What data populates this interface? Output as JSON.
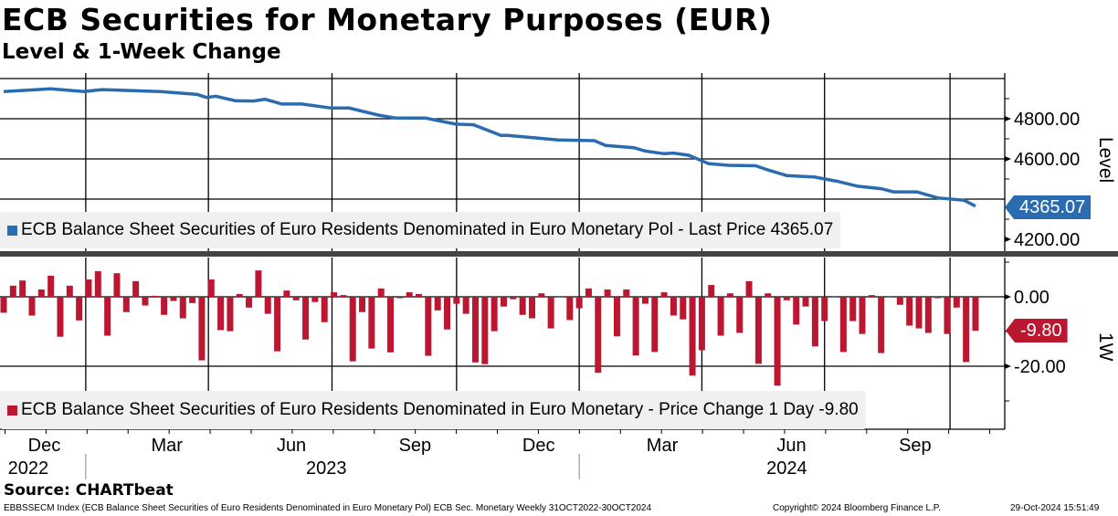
{
  "header": {
    "title": "ECB Securities for Monetary Purposes (EUR)",
    "subtitle": "Level & 1-Week Change"
  },
  "colors": {
    "level": "#2b6cb0",
    "change": "#bb1730",
    "legend_bg": "#f0f0f0"
  },
  "chart_data": [
    {
      "type": "line",
      "name": "level",
      "ylabel": "Level",
      "ylim": [
        4150,
        5000
      ],
      "yticks": [
        "4200.00",
        "4600.00",
        "4800.00"
      ],
      "ytick_values": [
        4200,
        4600,
        4800
      ],
      "grid_values": [
        4400,
        4600,
        4800,
        5000
      ],
      "last_value_label": "4365.07",
      "legend": "ECB Balance Sheet Securities of Euro Residents Denominated in Euro Monetary Pol - Last Price 4365.07",
      "points_week_value": [
        [
          0,
          4935
        ],
        [
          5,
          4949
        ],
        [
          8.5,
          4935
        ],
        [
          10.4,
          4945
        ],
        [
          16.6,
          4935
        ],
        [
          20.5,
          4921
        ],
        [
          21.5,
          4906
        ],
        [
          22.5,
          4912
        ],
        [
          24.6,
          4889
        ],
        [
          26.5,
          4888
        ],
        [
          27.7,
          4897
        ],
        [
          29.5,
          4873
        ],
        [
          31.6,
          4873
        ],
        [
          34.7,
          4853
        ],
        [
          36.6,
          4853
        ],
        [
          39.7,
          4818
        ],
        [
          41.6,
          4803
        ],
        [
          44.7,
          4803
        ],
        [
          47.9,
          4773
        ],
        [
          49.8,
          4770
        ],
        [
          52.7,
          4717
        ],
        [
          53.4,
          4717
        ],
        [
          58.8,
          4694
        ],
        [
          62.6,
          4691
        ],
        [
          63.8,
          4667
        ],
        [
          66.8,
          4656
        ],
        [
          68,
          4639
        ],
        [
          70,
          4626
        ],
        [
          71,
          4629
        ],
        [
          72.6,
          4618
        ],
        [
          74.7,
          4577
        ],
        [
          76.8,
          4568
        ],
        [
          79.7,
          4566
        ],
        [
          81,
          4545
        ],
        [
          83,
          4517
        ],
        [
          85.9,
          4510
        ],
        [
          88.4,
          4488
        ],
        [
          90.5,
          4464
        ],
        [
          93,
          4452
        ],
        [
          94.3,
          4436
        ],
        [
          96.8,
          4436
        ],
        [
          99,
          4406
        ],
        [
          101.8,
          4394
        ],
        [
          103,
          4365.07
        ]
      ]
    },
    {
      "type": "bar",
      "name": "1-week change",
      "ylabel": "1W",
      "ylim": [
        -31,
        14
      ],
      "yticks": [
        "0.00",
        "-20.00"
      ],
      "ytick_values": [
        0,
        -20
      ],
      "last_value_label": "-9.80",
      "legend": "ECB Balance Sheet Securities of Euro Residents Denominated in Euro Monetary - Price Change 1 Day -9.80",
      "values": [
        -4.6,
        3.2,
        4.7,
        -5.4,
        2.1,
        6.1,
        -11.5,
        3.2,
        -6.8,
        5.0,
        7.4,
        -11.2,
        6.8,
        -4.4,
        4.5,
        -2.5,
        0.3,
        -5.2,
        -1.2,
        -6.2,
        -1.8,
        -18.3,
        5.0,
        -9.6,
        -9.9,
        0.8,
        -3.1,
        7.6,
        -4.9,
        -15.7,
        1.8,
        -1.0,
        -12.3,
        -1.5,
        -7.3,
        1.3,
        0.5,
        -18.6,
        -4.4,
        -14.9,
        2.4,
        -16.0,
        -0.4,
        1.3,
        0.8,
        -17.0,
        -3.9,
        -9.4,
        -2.0,
        -4.9,
        -18.9,
        -19.4,
        -9.9,
        -2.8,
        -0.7,
        -5.2,
        -6.2,
        1.0,
        -9.1,
        -0.1,
        -6.7,
        -3.3,
        2.4,
        -21.9,
        2.1,
        -11.4,
        2.1,
        -16.9,
        -2.0,
        -15.9,
        1.3,
        -5.4,
        -6.5,
        -22.7,
        -15.4,
        3.4,
        -11.2,
        1.0,
        -10.4,
        4.5,
        -19.3,
        1.0,
        -25.6,
        -1.0,
        -8.0,
        -2.8,
        -14.3,
        -7.0,
        0.0,
        -15.9,
        -7.0,
        -10.7,
        0.5,
        -16.2,
        0.0,
        -2.3,
        -8.3,
        -9.1,
        -10.4,
        -0.4,
        -10.7,
        -3.1,
        -18.8,
        -9.8
      ]
    }
  ],
  "x_axis": {
    "months": [
      {
        "label": "Dec",
        "week": 4.3
      },
      {
        "label": "Mar",
        "week": 17.3
      },
      {
        "label": "Jun",
        "week": 30.5
      },
      {
        "label": "Sep",
        "week": 43.6
      },
      {
        "label": "Dec",
        "week": 56.7
      },
      {
        "label": "Mar",
        "week": 69.8
      },
      {
        "label": "Jun",
        "week": 83.5
      },
      {
        "label": "Sep",
        "week": 96.6
      }
    ],
    "years": [
      {
        "label": "2022",
        "week": 2.6
      },
      {
        "label": "2023",
        "week": 34.2
      },
      {
        "label": "2024",
        "week": 83.0
      }
    ],
    "quarter_grid_weeks": [
      8.7,
      21.7,
      34.8,
      48.0,
      61.0,
      74.0,
      87.0,
      100.3
    ],
    "year_breaks": [
      8.7,
      61.0
    ]
  },
  "footer": {
    "source": "Source: CHARTbeat",
    "index_desc": "EBBSSECM Index (ECB Balance Sheet Securities of Euro Residents Denominated in Euro Monetary Pol) ECB Sec. Monetary  Weekly 31OCT2022-30OCT2024",
    "copyright": "Copyright© 2024 Bloomberg Finance L.P.",
    "timestamp": "29-Oct-2024 15:51:49"
  }
}
